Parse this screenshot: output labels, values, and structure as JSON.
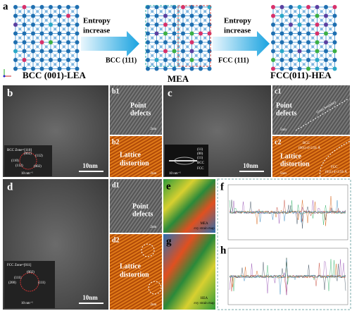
{
  "panel_a": {
    "label": "a",
    "structures": [
      "BCC (001)-LEA",
      "MEA",
      "FCC(011)-HEA"
    ],
    "arrows": [
      [
        "Entropy",
        "increase"
      ],
      [
        "Entropy",
        "increase"
      ]
    ],
    "planes": [
      "BCC (111)",
      "FCC (111)"
    ]
  },
  "panel_b": {
    "label": "b",
    "scale_bar": "10nm",
    "inset": {
      "zone": "BCC Zone=[110]",
      "spots": [
        "(002)",
        "(112)",
        "(110)",
        "(112)",
        "(002)"
      ],
      "scale_bar": "10 nm⁻¹"
    },
    "b1": {
      "label": "b1",
      "text": [
        "Point",
        "defects"
      ],
      "scale_bar": "2nm"
    },
    "b2": {
      "label": "b2",
      "text": [
        "Lattice",
        "distortion"
      ],
      "scale_bar": "2nm"
    }
  },
  "panel_c": {
    "label": "c",
    "scale_bar": "10nm",
    "inset": {
      "spots": [
        "(11)",
        "(00)",
        "(11)",
        "BCC",
        "FCC"
      ],
      "scale_bar": "10 nm⁻¹"
    },
    "c1": {
      "label": "c1",
      "text": [
        "Point",
        "defects"
      ],
      "annotation": "Grain boundary",
      "scale_bar": "5nm"
    },
    "c2": {
      "label": "c2",
      "text": [
        "Lattice",
        "distortion"
      ],
      "bcc": [
        "BCC",
        "(001) d=2.91 Å"
      ],
      "fcc": [
        "FCC",
        "(011) d=2.56 Å"
      ],
      "scale_bar": "5nm"
    }
  },
  "panel_d": {
    "label": "d",
    "scale_bar": "10nm",
    "inset": {
      "zone": "FCC Zone=[011]",
      "spots": [
        "(002)",
        "(111)",
        "(200)",
        "(111)"
      ],
      "scale_bar": "10 nm⁻¹"
    },
    "d1": {
      "label": "d1",
      "text": [
        "Point",
        "defects"
      ],
      "scale_bar": "2nm"
    },
    "d2": {
      "label": "d2",
      "text": [
        "Lattice",
        "distortion"
      ],
      "scale_bar": "2nm"
    }
  },
  "panel_e": {
    "label": "e",
    "caption": [
      "MEA",
      "εxy strain map"
    ]
  },
  "panel_f": {
    "label": "f"
  },
  "panel_g": {
    "label": "g",
    "caption": [
      "HEA",
      "εxy strain map"
    ]
  },
  "panel_h": {
    "label": "h"
  }
}
